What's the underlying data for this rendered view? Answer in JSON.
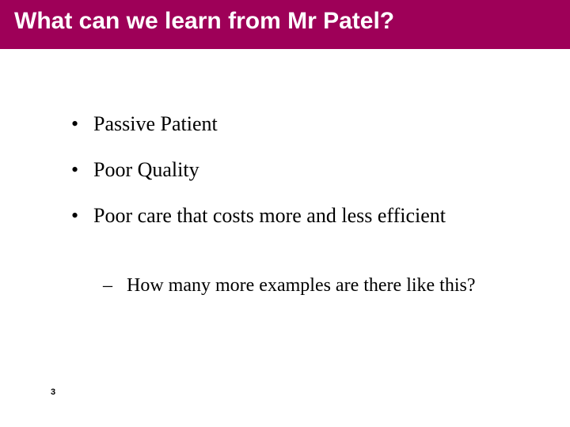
{
  "colors": {
    "title_bg": "#9e0058",
    "title_text": "#ffffff",
    "body_text": "#000000",
    "background": "#ffffff"
  },
  "typography": {
    "title_font": "Arial",
    "title_size_pt": 30,
    "title_weight": "bold",
    "body_font": "Times New Roman",
    "body_size_pt": 26,
    "sub_size_pt": 24,
    "pagenum_size_pt": 11
  },
  "title": "What can we learn from Mr Patel?",
  "bullets": [
    {
      "level": 1,
      "text": "Passive Patient"
    },
    {
      "level": 1,
      "text": "Poor Quality"
    },
    {
      "level": 1,
      "text": "Poor care that costs more and less efficient"
    },
    {
      "level": 2,
      "text": "How many more examples are there like this?"
    }
  ],
  "page_number": "3"
}
